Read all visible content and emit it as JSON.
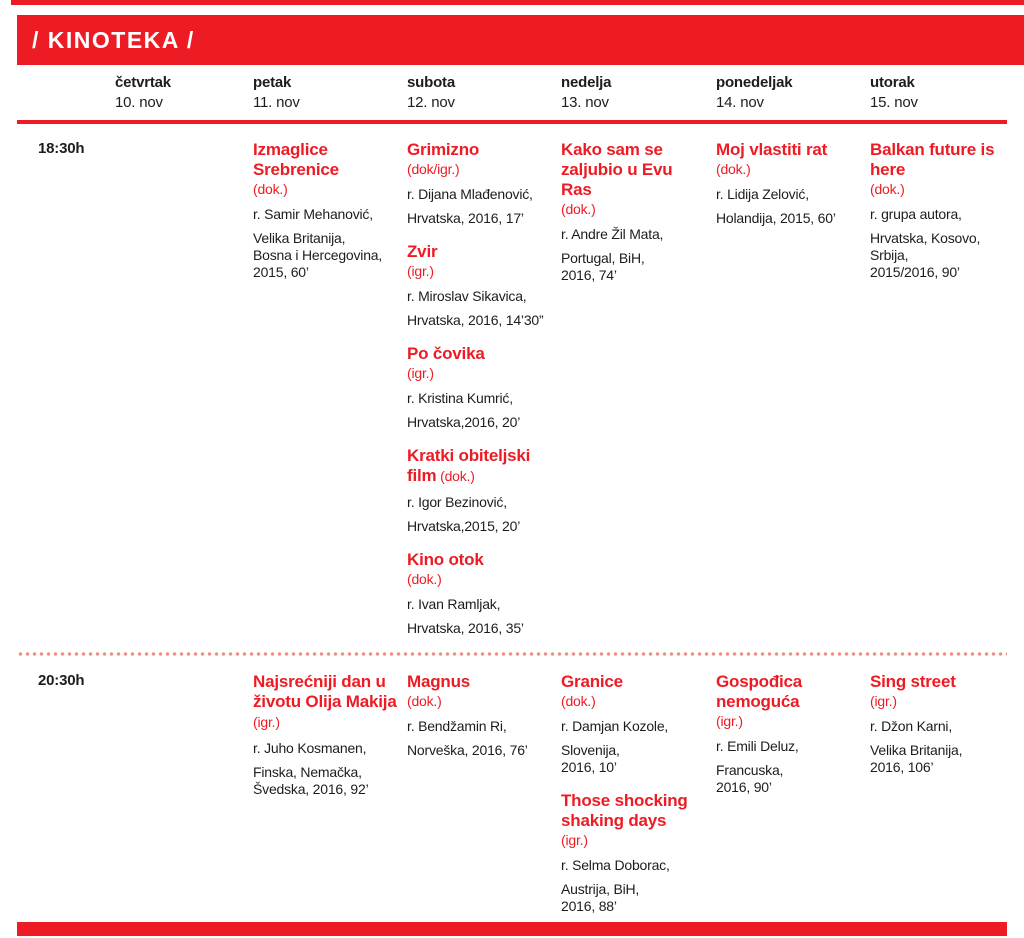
{
  "colors": {
    "accent_red": "#ED1C24",
    "text_black": "#1D1D1B",
    "dotted_divider": "#EF8D7C",
    "background": "#FFFFFF",
    "title_text": "#FFFFFF"
  },
  "header": {
    "title": "/ KINOTEKA /"
  },
  "days": [
    {
      "name": "četvrtak",
      "date": "10. nov"
    },
    {
      "name": "petak",
      "date": "11. nov"
    },
    {
      "name": "subota",
      "date": "12. nov"
    },
    {
      "name": "nedelja",
      "date": "13. nov"
    },
    {
      "name": "ponedeljak",
      "date": "14. nov"
    },
    {
      "name": "utorak",
      "date": "15. nov"
    }
  ],
  "rows": [
    {
      "time": "18:30h",
      "cells": [
        {
          "day": "četvrtak",
          "films": []
        },
        {
          "day": "petak",
          "films": [
            {
              "title": "Izmaglice Srebrenice",
              "format": "(dok.)",
              "format_inline": false,
              "director": "r. Samir Mehanović,",
              "origin": "Velika Britanija,\nBosna i Hercegovina,\n2015, 60’"
            }
          ]
        },
        {
          "day": "subota",
          "films": [
            {
              "title": "Grimizno",
              "format": "(dok/igr.)",
              "format_inline": false,
              "director": "r. Dijana Mlađenović,",
              "origin": "Hrvatska, 2016, 17’"
            },
            {
              "title": "Zvir",
              "format": "(igr.)",
              "format_inline": false,
              "director": "r. Miroslav Sikavica,",
              "origin": "Hrvatska, 2016, 14’30”"
            },
            {
              "title": "Po čovika",
              "format": "(igr.)",
              "format_inline": false,
              "director": "r. Kristina Kumrić,",
              "origin": "Hrvatska,2016, 20’"
            },
            {
              "title": "Kratki obiteljski film",
              "format": "(dok.)",
              "format_inline": true,
              "director": "r. Igor Bezinović,",
              "origin": "Hrvatska,2015, 20’"
            },
            {
              "title": "Kino otok",
              "format": "(dok.)",
              "format_inline": false,
              "director": "r. Ivan Ramljak,",
              "origin": "Hrvatska, 2016, 35’"
            }
          ]
        },
        {
          "day": "nedelja",
          "films": [
            {
              "title": "Kako sam se zaljubio u Evu Ras",
              "format": "(dok.)",
              "format_inline": false,
              "director": "r. Andre Žil Mata,",
              "origin": "Portugal, BiH,\n2016, 74’"
            }
          ]
        },
        {
          "day": "ponedeljak",
          "films": [
            {
              "title": "Moj vlastiti rat",
              "format": "(dok.)",
              "format_inline": false,
              "director": "r. Lidija Zelović,",
              "origin": "Holandija, 2015, 60’"
            }
          ]
        },
        {
          "day": "utorak",
          "films": [
            {
              "title": "Balkan future is here",
              "format": "(dok.)",
              "format_inline": false,
              "director": "r. grupa autora,",
              "origin": "Hrvatska, Kosovo,\nSrbija,\n2015/2016, 90’"
            }
          ]
        }
      ]
    },
    {
      "time": "20:30h",
      "cells": [
        {
          "day": "četvrtak",
          "films": []
        },
        {
          "day": "petak",
          "films": [
            {
              "title": "Najsrećniji dan u životu Olija Makija",
              "format": "(igr.)",
              "format_inline": true,
              "director": "r. Juho Kosmanen,",
              "origin": "Finska, Nemačka,\nŠvedska, 2016, 92’"
            }
          ]
        },
        {
          "day": "subota",
          "films": [
            {
              "title": "Magnus",
              "format": "(dok.)",
              "format_inline": false,
              "director": "r. Bendžamin Ri,",
              "origin": "Norveška, 2016, 76’"
            }
          ]
        },
        {
          "day": "nedelja",
          "films": [
            {
              "title": "Granice",
              "format": "(dok.)",
              "format_inline": false,
              "director": "r. Damjan Kozole,",
              "origin": "Slovenija,\n2016, 10’"
            },
            {
              "title": "Those shocking shaking days",
              "format": "(igr.)",
              "format_inline": false,
              "director": "r. Selma Doborac,",
              "origin": "Austrija, BiH,\n2016, 88’"
            }
          ]
        },
        {
          "day": "ponedeljak",
          "films": [
            {
              "title": "Gospođica nemoguća",
              "format": "(igr.)",
              "format_inline": false,
              "director": "r. Emili Deluz,",
              "origin": "Francuska,\n2016, 90’"
            }
          ]
        },
        {
          "day": "utorak",
          "films": [
            {
              "title": "Sing street",
              "format": "(igr.)",
              "format_inline": false,
              "director": "r. Džon Karni,",
              "origin": "Velika Britanija,\n2016, 106’"
            }
          ]
        }
      ]
    }
  ]
}
